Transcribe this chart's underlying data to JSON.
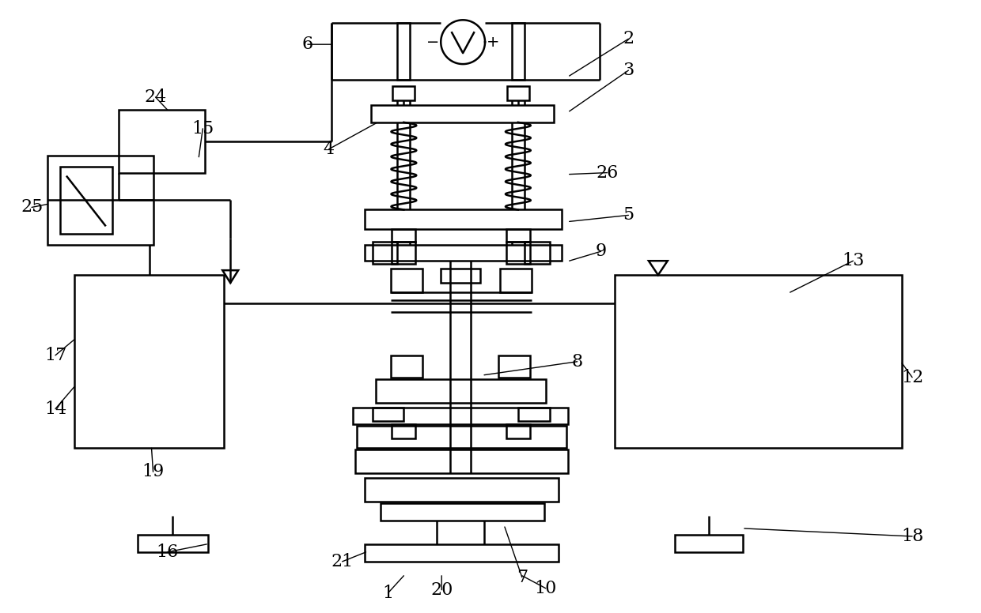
{
  "bg": "#ffffff",
  "lc": "#000000",
  "lw": 1.8,
  "fw": 12.4,
  "fh": 7.76,
  "labels": [
    [
      "1",
      490,
      752
    ],
    [
      "2",
      795,
      48
    ],
    [
      "3",
      795,
      88
    ],
    [
      "4",
      415,
      188
    ],
    [
      "5",
      795,
      272
    ],
    [
      "6",
      388,
      55
    ],
    [
      "7",
      660,
      732
    ],
    [
      "8",
      730,
      458
    ],
    [
      "9",
      760,
      318
    ],
    [
      "10",
      690,
      746
    ],
    [
      "12",
      1155,
      478
    ],
    [
      "13",
      1080,
      330
    ],
    [
      "14",
      68,
      518
    ],
    [
      "15",
      255,
      162
    ],
    [
      "16",
      210,
      700
    ],
    [
      "17",
      68,
      450
    ],
    [
      "18",
      1155,
      680
    ],
    [
      "19",
      192,
      598
    ],
    [
      "20",
      558,
      748
    ],
    [
      "21",
      432,
      712
    ],
    [
      "24",
      195,
      122
    ],
    [
      "25",
      38,
      262
    ],
    [
      "26",
      768,
      218
    ]
  ]
}
